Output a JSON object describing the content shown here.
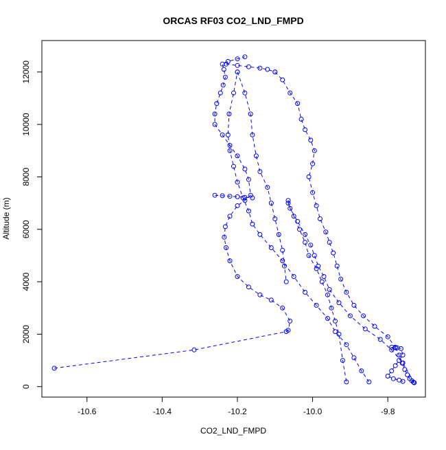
{
  "chart_data": {
    "type": "line",
    "title": "ORCAS RF03 CO2_LND_FMPD",
    "xlabel": "CO2_LND_FMPD",
    "ylabel": "Altitude (m)",
    "xlim": [
      -10.72,
      -9.7
    ],
    "ylim": [
      -400,
      13200
    ],
    "x_ticks": [
      -10.6,
      -10.4,
      -10.2,
      -10.0,
      -9.8
    ],
    "x_tick_labels": [
      "-10.6",
      "-10.4",
      "-10.2",
      "-10.0",
      "-9.8"
    ],
    "y_ticks": [
      0,
      2000,
      4000,
      6000,
      8000,
      10000,
      12000
    ],
    "y_tick_labels": [
      "0",
      "2000",
      "4000",
      "6000",
      "8000",
      "10000",
      "12000"
    ],
    "grid": false,
    "legend": "none",
    "marker": "open-circle",
    "line_style": "dashed",
    "color": "#0000ff",
    "series": [
      {
        "x": [
          -10.687,
          -10.315,
          -10.07,
          -10.065,
          -10.06,
          -10.08,
          -10.11,
          -10.14,
          -10.17,
          -10.2,
          -10.22,
          -10.23,
          -10.235,
          -10.232,
          -10.22,
          -10.2,
          -10.18,
          -10.165,
          -10.17,
          -10.18,
          -10.2,
          -10.22,
          -10.24,
          -10.26,
          -10.26,
          -10.255,
          -10.245,
          -10.238,
          -10.232,
          -10.236,
          -10.24,
          -10.225,
          -10.2,
          -10.18
        ],
        "y": [
          700,
          1400,
          2100,
          2150,
          2500,
          3000,
          3300,
          3500,
          3800,
          4200,
          4800,
          5300,
          5700,
          6100,
          6500,
          6900,
          7100,
          7300,
          7900,
          8300,
          8800,
          9200,
          9600,
          10000,
          10400,
          10800,
          11200,
          11500,
          11800,
          12100,
          12300,
          12400,
          12500,
          12580
        ]
      },
      {
        "x": [
          -10.23,
          -10.2,
          -10.17,
          -10.14,
          -10.12,
          -10.1
        ],
        "y": [
          12300,
          12250,
          12200,
          12150,
          12100,
          12000
        ]
      },
      {
        "x": [
          -10.1,
          -10.08,
          -10.06,
          -10.04,
          -10.03,
          -10.02,
          -10.005,
          -9.995,
          -10.0,
          -10.01,
          -10.0,
          -9.99,
          -9.98,
          -9.965,
          -9.955,
          -9.945,
          -9.935,
          -9.925,
          -9.91,
          -9.89,
          -9.865,
          -9.835,
          -9.8,
          -9.78
        ],
        "y": [
          12000,
          11700,
          11200,
          10800,
          10200,
          9800,
          9400,
          9000,
          8500,
          8000,
          7400,
          6900,
          6400,
          5900,
          5500,
          5100,
          4600,
          4100,
          3600,
          3100,
          2700,
          2300,
          1900,
          1500
        ]
      },
      {
        "x": [
          -9.78,
          -9.77,
          -9.762,
          -9.755,
          -9.748,
          -9.742,
          -9.736,
          -9.732,
          -9.73
        ],
        "y": [
          1480,
          1200,
          900,
          650,
          450,
          300,
          220,
          170,
          150
        ]
      },
      {
        "x": [
          -9.73,
          -9.76,
          -9.79,
          -9.82,
          -9.86,
          -9.9,
          -9.93,
          -9.955,
          -9.97,
          -9.985,
          -9.995,
          -10.005,
          -10.02,
          -10.04,
          -10.06,
          -10.065
        ],
        "y": [
          150,
          900,
          1400,
          1800,
          2200,
          2700,
          3200,
          3700,
          4200,
          4600,
          5000,
          5400,
          5800,
          6300,
          6800,
          7100
        ]
      },
      {
        "x": [
          -10.065,
          -10.05,
          -10.035,
          -10.02,
          -10.01,
          -9.99,
          -9.975,
          -9.96,
          -9.95,
          -9.94,
          -9.93,
          -9.92,
          -9.91
        ],
        "y": [
          7000,
          6500,
          6000,
          5500,
          5000,
          4500,
          4000,
          3500,
          3000,
          2500,
          2000,
          1000,
          180
        ]
      },
      {
        "x": [
          -9.85,
          -9.87,
          -9.89,
          -9.91,
          -9.94,
          -9.96,
          -9.99,
          -10.02,
          -10.05,
          -10.08,
          -10.11,
          -10.14,
          -10.16,
          -10.17,
          -10.185,
          -10.2,
          -10.21,
          -10.22,
          -10.225,
          -10.222,
          -10.21,
          -10.2
        ],
        "y": [
          180,
          600,
          1100,
          1600,
          2100,
          2600,
          3100,
          3600,
          4200,
          4800,
          5300,
          5800,
          6200,
          6700,
          7200,
          7800,
          8400,
          9000,
          9600,
          10400,
          11200,
          12000
        ]
      },
      {
        "x": [
          -10.2,
          -10.18,
          -10.165,
          -10.16,
          -10.15,
          -10.14,
          -10.12,
          -10.11,
          -10.1,
          -10.09,
          -10.08,
          -10.075,
          -10.07
        ],
        "y": [
          12000,
          11200,
          10400,
          9600,
          8800,
          8200,
          7600,
          7000,
          6400,
          5800,
          5200,
          4600,
          4000
        ]
      },
      {
        "x": [
          -10.26,
          -10.24,
          -10.22,
          -10.2,
          -10.18,
          -10.16
        ],
        "y": [
          7300,
          7280,
          7260,
          7240,
          7220,
          7200
        ]
      },
      {
        "x": [
          -9.79,
          -9.775,
          -9.765,
          -9.76,
          -9.77,
          -9.78,
          -9.79,
          -9.8,
          -9.785,
          -9.77,
          -9.76
        ],
        "y": [
          1500,
          1480,
          1450,
          1200,
          1000,
          800,
          600,
          400,
          300,
          250,
          200
        ]
      }
    ]
  }
}
